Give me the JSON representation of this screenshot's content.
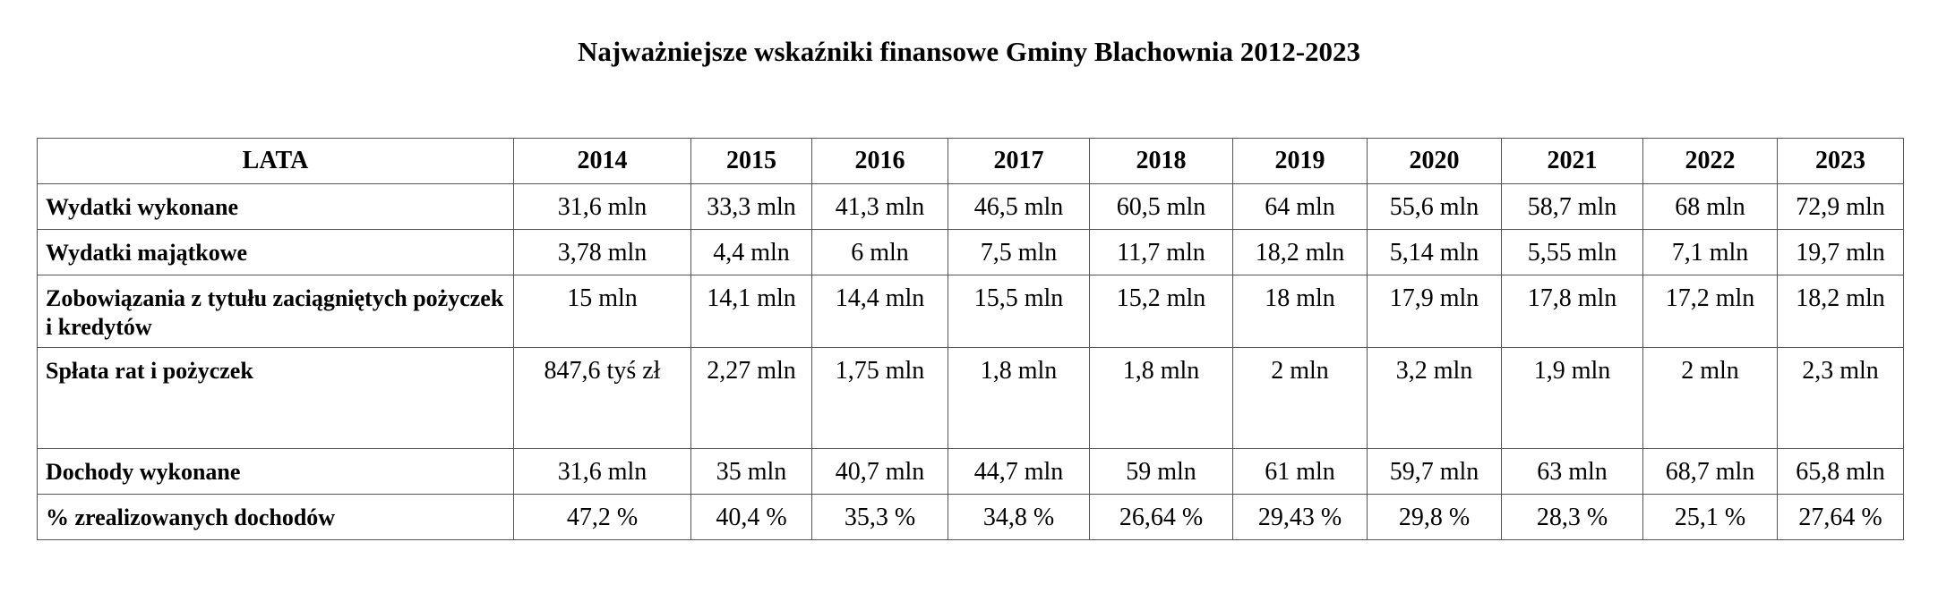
{
  "title": "Najważniejsze wskaźniki finansowe Gminy Blachownia 2012-2023",
  "table": {
    "header_label": "LATA",
    "years": [
      "2014",
      "2015",
      "2016",
      "2017",
      "2018",
      "2019",
      "2020",
      "2021",
      "2022",
      "2023"
    ],
    "rows": [
      {
        "label": "Wydatki wykonane",
        "values": [
          "31,6 mln",
          "33,3 mln",
          "41,3 mln",
          "46,5 mln",
          "60,5 mln",
          "64 mln",
          "55,6 mln",
          "58,7 mln",
          "68 mln",
          "72,9 mln"
        ]
      },
      {
        "label": "Wydatki majątkowe",
        "values": [
          "3,78 mln",
          "4,4 mln",
          "6 mln",
          "7,5 mln",
          "11,7 mln",
          "18,2 mln",
          "5,14 mln",
          "5,55 mln",
          "7,1 mln",
          "19,7 mln"
        ]
      },
      {
        "label": "Zobowiązania z tytułu zaciągniętych pożyczek i kredytów",
        "values": [
          "15 mln",
          "14,1 mln",
          "14,4 mln",
          "15,5 mln",
          "15,2 mln",
          "18 mln",
          "17,9 mln",
          "17,8 mln",
          "17,2 mln",
          "18,2 mln"
        ]
      },
      {
        "label": "Spłata rat i pożyczek",
        "values": [
          "847,6 tyś zł",
          "2,27 mln",
          "1,75 mln",
          "1,8 mln",
          "1,8 mln",
          "2 mln",
          "3,2 mln",
          "1,9 mln",
          "2 mln",
          "2,3 mln"
        ]
      },
      {
        "label": "Dochody wykonane",
        "values": [
          "31,6 mln",
          "35 mln",
          "40,7 mln",
          "44,7 mln",
          "59 mln",
          "61 mln",
          "59,7 mln",
          "63 mln",
          "68,7 mln",
          "65,8 mln"
        ]
      },
      {
        "label": "% zrealizowanych dochodów",
        "values": [
          "47,2 %",
          "40,4 %",
          "35,3 %",
          "34,8 %",
          "26,64 %",
          "29,43 %",
          "29,8 %",
          "28,3 %",
          "25,1 %",
          "27,64 %"
        ]
      }
    ]
  }
}
